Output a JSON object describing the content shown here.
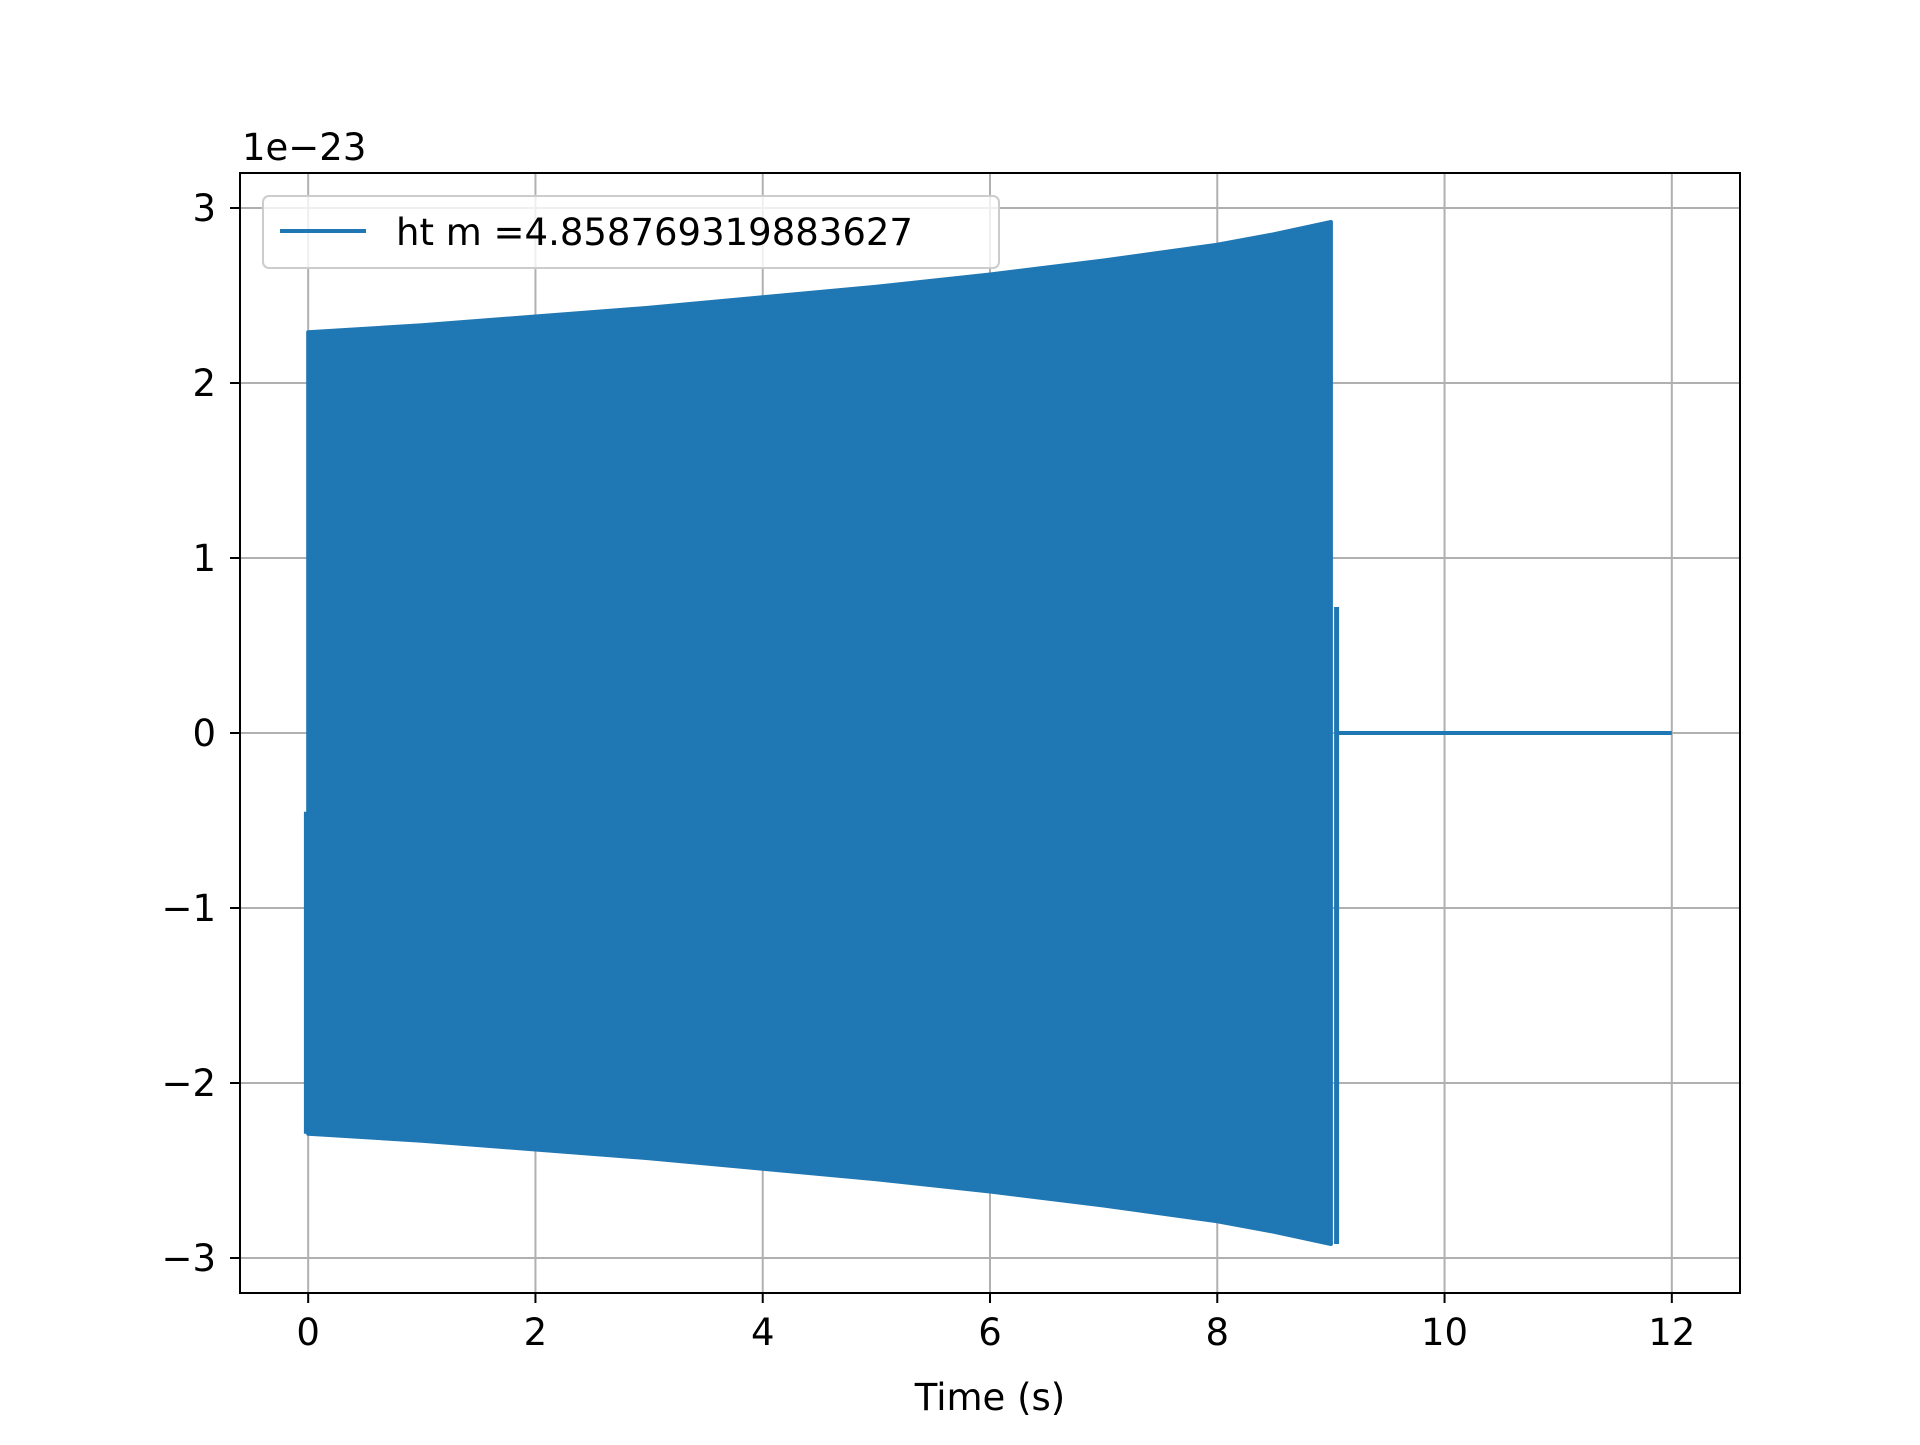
{
  "chart_data": {
    "type": "line",
    "title": "",
    "xlabel": "Time (s)",
    "ylabel": "",
    "y_offset_label": "1e−23",
    "xlim": [
      -0.6,
      12.6
    ],
    "ylim": [
      -3.2,
      3.2
    ],
    "x_ticks": [
      {
        "value": 0,
        "label": "0"
      },
      {
        "value": 2,
        "label": "2"
      },
      {
        "value": 4,
        "label": "4"
      },
      {
        "value": 6,
        "label": "6"
      },
      {
        "value": 8,
        "label": "8"
      },
      {
        "value": 10,
        "label": "10"
      },
      {
        "value": 12,
        "label": "12"
      }
    ],
    "y_ticks": [
      {
        "value": -3,
        "label": "−3"
      },
      {
        "value": -2,
        "label": "−2"
      },
      {
        "value": -1,
        "label": "−1"
      },
      {
        "value": 0,
        "label": "0"
      },
      {
        "value": 1,
        "label": "1"
      },
      {
        "value": 2,
        "label": "2"
      },
      {
        "value": 3,
        "label": "3"
      }
    ],
    "grid": true,
    "legend_position": "top-left",
    "series": [
      {
        "name": "ht m =4.858769319883627",
        "color": "#1f77b4",
        "description_of_shape": "rapid oscillation filling an envelope",
        "envelope": {
          "t": [
            0.0,
            1.0,
            2.0,
            3.0,
            4.0,
            5.0,
            6.0,
            7.0,
            8.0,
            8.5,
            9.0
          ],
          "amplitude": [
            2.29,
            2.33,
            2.38,
            2.43,
            2.49,
            2.55,
            2.62,
            2.7,
            2.79,
            2.85,
            2.92
          ]
        },
        "final_spike": {
          "t": 9.05,
          "y_max": 0.72
        },
        "start_dip": {
          "t": -0.02,
          "y": -0.45
        },
        "flat_segment": {
          "t_start": 9.05,
          "t_end": 12.0,
          "y": 0.0
        }
      }
    ]
  }
}
